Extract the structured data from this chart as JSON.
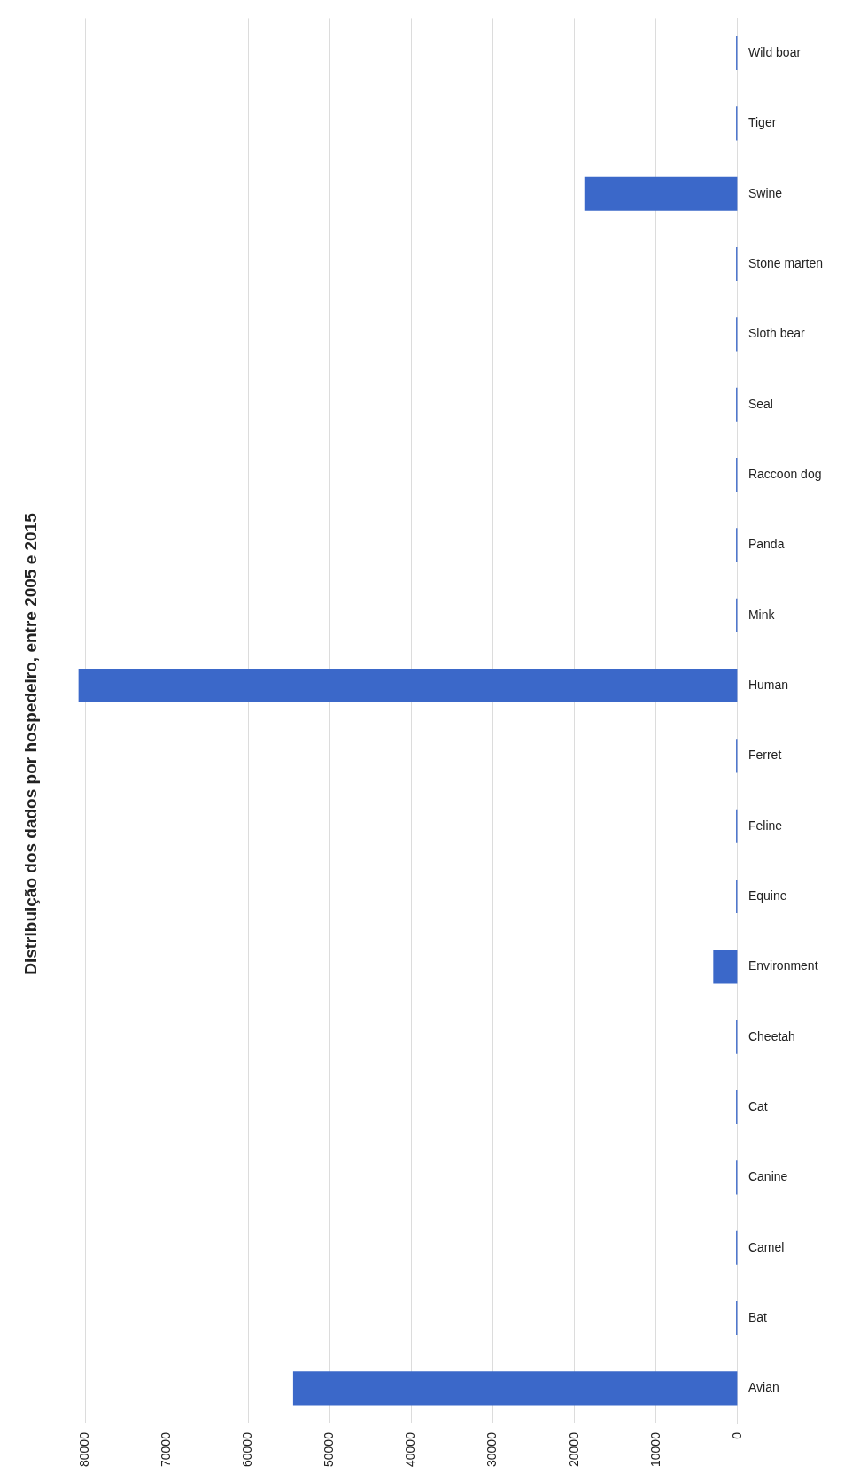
{
  "chart_data": {
    "type": "bar",
    "orientation": "horizontal",
    "title": "Distribuição dos dados por hospedeiro, entre 2005 e 2015",
    "categories": [
      "Wild boar",
      "Tiger",
      "Swine",
      "Stone marten",
      "Sloth bear",
      "Seal",
      "Raccoon dog",
      "Panda",
      "Mink",
      "Human",
      "Ferret",
      "Feline",
      "Equine",
      "Environment",
      "Cheetah",
      "Cat",
      "Canine",
      "Camel",
      "Bat",
      "Avian"
    ],
    "values": [
      200,
      200,
      18800,
      200,
      200,
      200,
      200,
      200,
      200,
      80800,
      200,
      200,
      200,
      3000,
      200,
      200,
      200,
      200,
      200,
      54500
    ],
    "color": "#3b68c9",
    "xlim": [
      81000,
      0
    ],
    "xticks": [
      80000,
      70000,
      60000,
      50000,
      40000,
      30000,
      20000,
      10000,
      0
    ],
    "grid": "x"
  }
}
